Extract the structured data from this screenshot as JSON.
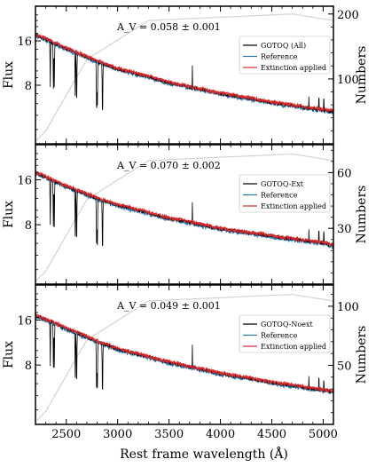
{
  "chart_data": [
    {
      "type": "line",
      "xlim": [
        2200,
        5100
      ],
      "ylabel": "Flux",
      "ylabel_right": "Numbers",
      "y_ticks": [
        "16",
        "8"
      ],
      "y_log": true,
      "y_range": [
        3.2,
        27.5
      ],
      "y_right_ticks": [
        "200",
        "100"
      ],
      "y_right_range": [
        0,
        212
      ],
      "annotation": "A_V = 0.058 ± 0.001",
      "legend_position": "right",
      "series": [
        {
          "name": "GOTOQ (All)",
          "color": "#000000"
        },
        {
          "name": "Reference",
          "color": "#1f77b4"
        },
        {
          "name": "Extinction applied",
          "color": "#d62728"
        }
      ],
      "numbers_color": "#d3d3d3",
      "numbers_plateau": 200,
      "flux_continuum": {
        "x": [
          2200,
          2500,
          2800,
          3000,
          3500,
          4000,
          4500,
          5000,
          5100
        ],
        "y": [
          17.6,
          14.1,
          11.6,
          10.3,
          8.3,
          7.0,
          6.1,
          5.4,
          5.3
        ]
      }
    },
    {
      "type": "line",
      "xlim": [
        2200,
        5100
      ],
      "ylabel": "Flux",
      "ylabel_right": "Numbers",
      "y_ticks": [
        "16",
        "8"
      ],
      "y_log": true,
      "y_range": [
        3.2,
        27.5
      ],
      "y_right_ticks": [
        "60",
        "30"
      ],
      "y_right_range": [
        0,
        75
      ],
      "annotation": "A_V = 0.070 ± 0.002",
      "legend_position": "right",
      "series": [
        {
          "name": "GOTOQ-Ext",
          "color": "#000000"
        },
        {
          "name": "Reference",
          "color": "#1f77b4"
        },
        {
          "name": "Extinction applied",
          "color": "#d62728"
        }
      ],
      "numbers_color": "#d3d3d3",
      "numbers_plateau": 70,
      "flux_continuum": {
        "x": [
          2200,
          2500,
          2800,
          3000,
          3500,
          4000,
          4500,
          5000,
          5100
        ],
        "y": [
          17.8,
          14.4,
          12.0,
          10.8,
          8.8,
          7.5,
          6.7,
          6.0,
          5.8
        ]
      }
    },
    {
      "type": "line",
      "xlim": [
        2200,
        5100
      ],
      "xlabel": "Rest frame wavelength (Å)",
      "x_ticks": [
        2500,
        3000,
        3500,
        4000,
        4500,
        5000
      ],
      "ylabel": "Flux",
      "ylabel_right": "Numbers",
      "y_ticks": [
        "16",
        "8"
      ],
      "y_log": true,
      "y_range": [
        3.2,
        27.5
      ],
      "y_right_ticks": [
        "100",
        "50"
      ],
      "y_right_range": [
        0,
        118
      ],
      "annotation": "A_V = 0.049 ± 0.001",
      "legend_position": "right",
      "series": [
        {
          "name": "GOTOQ-Noext",
          "color": "#000000"
        },
        {
          "name": "Reference",
          "color": "#1f77b4"
        },
        {
          "name": "Extinction applied",
          "color": "#d62728"
        }
      ],
      "numbers_color": "#d3d3d3",
      "numbers_plateau": 110,
      "flux_continuum": {
        "x": [
          2200,
          2500,
          2800,
          3000,
          3500,
          4000,
          4500,
          5000,
          5100
        ],
        "y": [
          17.2,
          14.0,
          11.5,
          10.2,
          8.3,
          7.0,
          6.1,
          5.4,
          5.3
        ]
      }
    }
  ],
  "absorption_lines": [
    2344,
    2374,
    2383,
    2587,
    2600,
    2796,
    2803,
    2853
  ],
  "emission_lines": [
    3727,
    4861,
    4959,
    5007
  ]
}
